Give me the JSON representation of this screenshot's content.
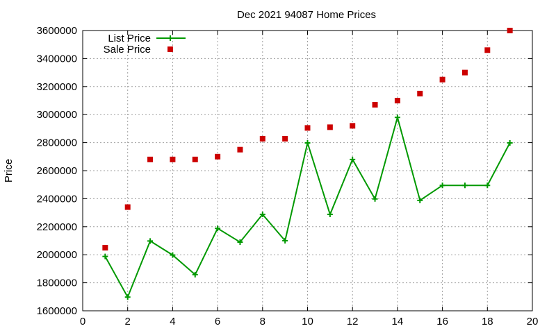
{
  "chart_data": {
    "type": "line",
    "title": "Dec 2021 94087 Home Prices",
    "xlabel": "",
    "ylabel": "Price",
    "xlim": [
      0,
      20
    ],
    "ylim": [
      1600000,
      3600000
    ],
    "xticks": [
      0,
      2,
      4,
      6,
      8,
      10,
      12,
      14,
      16,
      18,
      20
    ],
    "yticks": [
      1600000,
      1800000,
      2000000,
      2200000,
      2400000,
      2600000,
      2800000,
      3000000,
      3200000,
      3400000,
      3600000
    ],
    "grid": true,
    "legend_position": "top-left",
    "series": [
      {
        "name": "List Price",
        "style": "linespoints",
        "marker": "plus",
        "color": "#009900",
        "x": [
          1,
          2,
          3,
          4,
          5,
          6,
          7,
          8,
          9,
          10,
          11,
          12,
          13,
          14,
          15,
          16,
          17,
          18,
          19
        ],
        "y": [
          1988000,
          1698000,
          2098000,
          1998000,
          1858000,
          2188000,
          2090000,
          2288000,
          2100000,
          2798000,
          2288000,
          2680000,
          2398000,
          2980000,
          2388000,
          2495000,
          2495000,
          2495000,
          2798000
        ]
      },
      {
        "name": "Sale Price",
        "style": "points",
        "marker": "square",
        "color": "#cc0000",
        "x": [
          1,
          2,
          3,
          4,
          5,
          6,
          7,
          8,
          9,
          10,
          11,
          12,
          13,
          14,
          15,
          16,
          17,
          18,
          19
        ],
        "y": [
          2050000,
          2340000,
          2680000,
          2680000,
          2680000,
          2700000,
          2750000,
          2828000,
          2828000,
          2905000,
          2910000,
          2920000,
          3070000,
          3100000,
          3150000,
          3250000,
          3300000,
          3460000,
          3600000
        ]
      }
    ]
  }
}
